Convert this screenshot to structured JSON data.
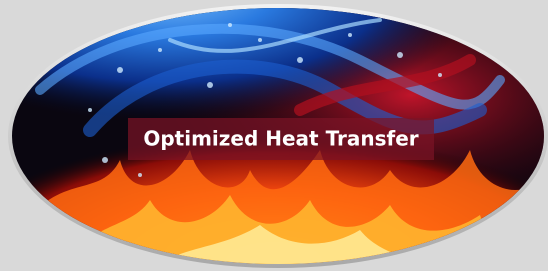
{
  "banner": {
    "label": "Optimized Heat Transfer"
  }
}
